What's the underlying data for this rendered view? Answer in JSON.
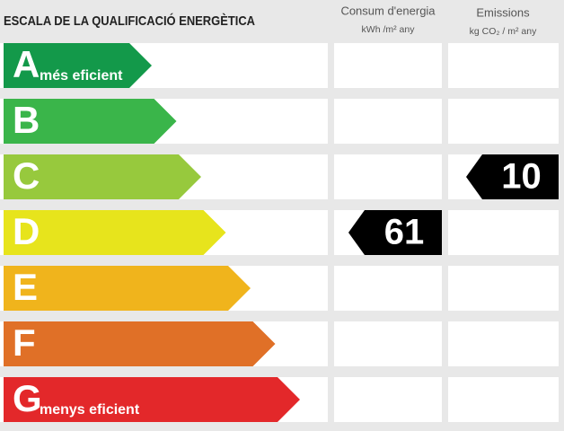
{
  "title": "ESCALA DE LA QUALIFICACIÓ ENERGÈTICA",
  "columns": [
    {
      "header": "Consum d'energia",
      "unit": "kWh /m² any"
    },
    {
      "header": "Emissions",
      "unit": "kg CO₂ / m² any"
    }
  ],
  "rows": [
    {
      "letter": "A",
      "label": "més eficient",
      "color": "#13994a"
    },
    {
      "letter": "B",
      "color": "#3ab54a"
    },
    {
      "letter": "C",
      "color": "#97c93d",
      "emissions": 10
    },
    {
      "letter": "D",
      "color": "#e7e41c",
      "consum": 61
    },
    {
      "letter": "E",
      "color": "#f0b41c"
    },
    {
      "letter": "F",
      "color": "#e07027"
    },
    {
      "letter": "G",
      "label": "menys eficient",
      "color": "#e3282a"
    }
  ]
}
